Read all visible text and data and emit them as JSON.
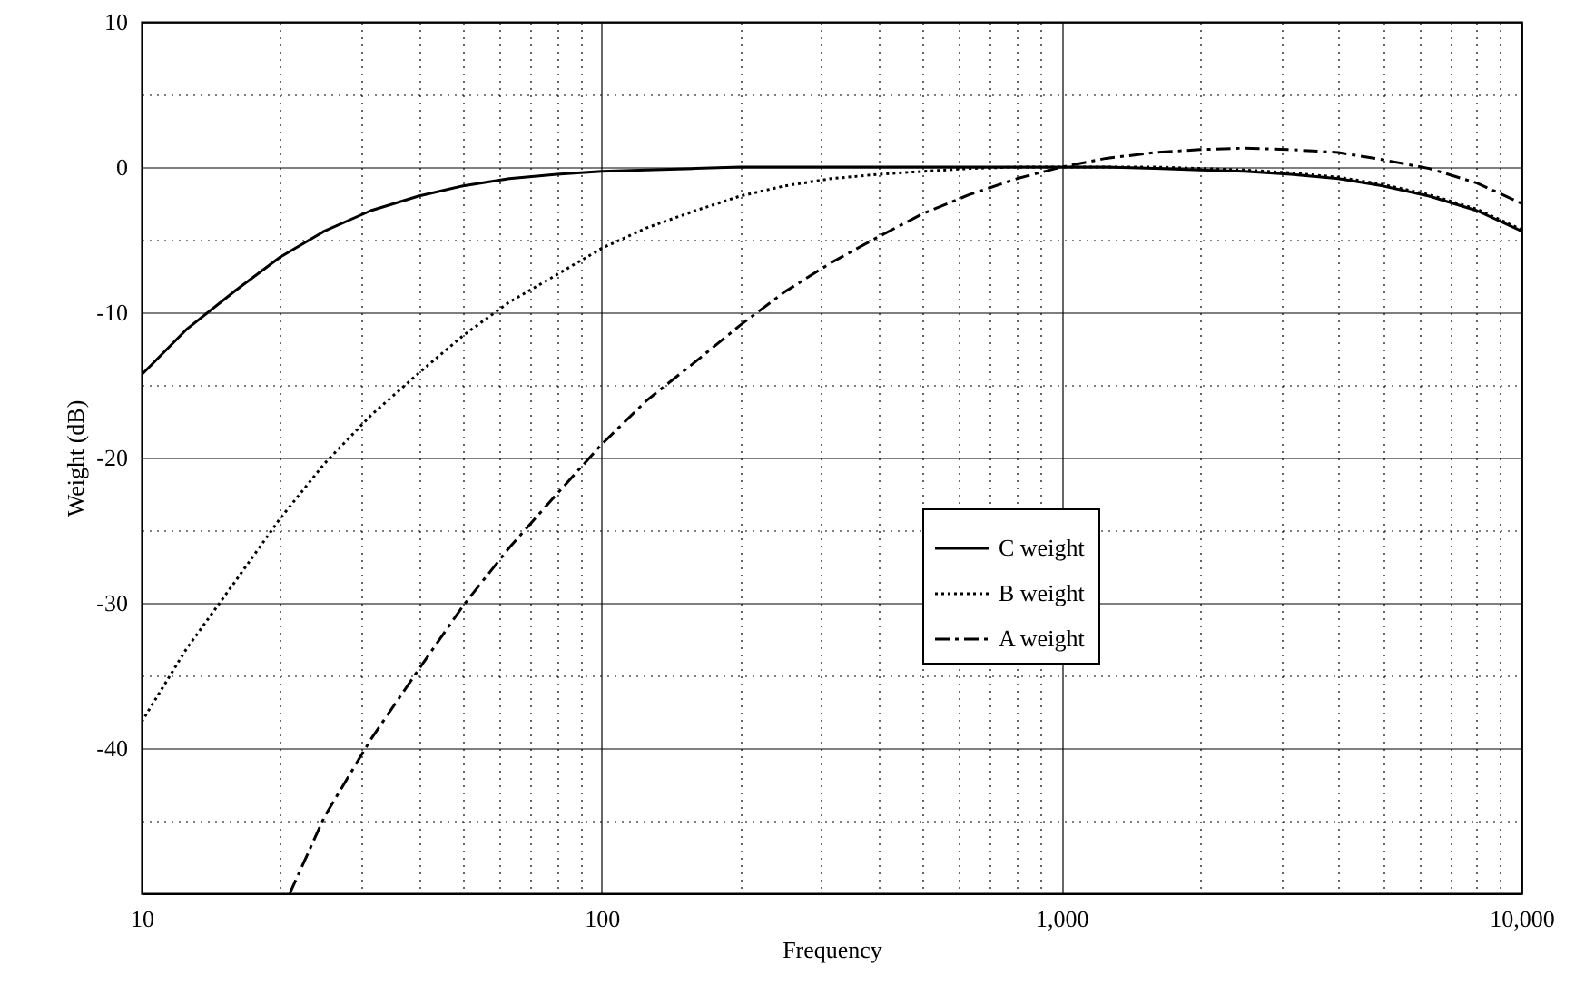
{
  "chart_data": {
    "type": "line",
    "xlabel": "Frequency",
    "ylabel": "Weight (dB)",
    "log": "x",
    "grid": true,
    "legend": "center right",
    "marker": "none",
    "xlim": [
      10,
      10000
    ],
    "ylim": [
      -50,
      10
    ],
    "xticks": [
      10,
      {
        "value": 20,
        "label": null
      },
      {
        "value": 30,
        "label": null
      },
      {
        "value": 40,
        "label": null
      },
      {
        "value": 50,
        "label": null
      },
      {
        "value": 60,
        "label": null
      },
      {
        "value": 70,
        "label": null
      },
      {
        "value": 80,
        "label": null
      },
      {
        "value": 90,
        "label": null
      },
      100,
      {
        "value": 200,
        "label": null
      },
      {
        "value": 300,
        "label": null
      },
      {
        "value": 400,
        "label": null
      },
      {
        "value": 500,
        "label": null
      },
      {
        "value": 600,
        "label": null
      },
      {
        "value": 700,
        "label": null
      },
      {
        "value": 800,
        "label": null
      },
      {
        "value": 900,
        "label": null
      },
      {
        "value": 1000,
        "label": "1,000"
      },
      {
        "value": 2000,
        "label": null
      },
      {
        "value": 3000,
        "label": null
      },
      {
        "value": 4000,
        "label": null
      },
      {
        "value": 5000,
        "label": null
      },
      {
        "value": 6000,
        "label": null
      },
      {
        "value": 7000,
        "label": null
      },
      {
        "value": 8000,
        "label": null
      },
      {
        "value": 9000,
        "label": null
      },
      {
        "value": 10000,
        "label": "10,000"
      }
    ],
    "yticks": [
      {
        "value": -45,
        "label": null
      },
      -40,
      {
        "value": -35,
        "label": null
      },
      -30,
      {
        "value": -25,
        "label": null
      },
      -20,
      {
        "value": -15,
        "label": null
      },
      -10,
      {
        "value": -5,
        "label": null
      },
      0,
      {
        "value": 5,
        "label": null
      },
      10
    ],
    "series": [
      {
        "name": "C weight",
        "color": "#000000",
        "line_style": "solid",
        "x": [
          10,
          12.5,
          16,
          20,
          25,
          31.5,
          40,
          50,
          63,
          80,
          100,
          125,
          160,
          200,
          250,
          315,
          400,
          500,
          630,
          800,
          1000,
          1250,
          1600,
          2000,
          2500,
          3150,
          4000,
          5000,
          6300,
          8000,
          10000
        ],
        "values": [
          -14.3,
          -11.2,
          -8.5,
          -6.2,
          -4.4,
          -3.0,
          -2.0,
          -1.3,
          -0.8,
          -0.5,
          -0.3,
          -0.2,
          -0.1,
          0,
          0,
          0,
          0,
          0,
          0,
          0,
          0,
          0,
          -0.1,
          -0.2,
          -0.3,
          -0.5,
          -0.8,
          -1.3,
          -2.0,
          -3.0,
          -4.4
        ]
      },
      {
        "name": "B weight",
        "color": "#000000",
        "line_style": "dotted",
        "x": [
          10,
          12.5,
          16,
          20,
          25,
          31.5,
          40,
          50,
          63,
          80,
          100,
          125,
          160,
          200,
          250,
          315,
          400,
          500,
          630,
          800,
          1000,
          1250,
          1600,
          2000,
          2500,
          3150,
          4000,
          5000,
          6300,
          8000,
          10000
        ],
        "values": [
          -38.2,
          -33.2,
          -28.5,
          -24.2,
          -20.4,
          -17.1,
          -14.2,
          -11.6,
          -9.3,
          -7.4,
          -5.6,
          -4.2,
          -3.0,
          -2.0,
          -1.3,
          -0.8,
          -0.5,
          -0.3,
          -0.1,
          0,
          0,
          0,
          0,
          -0.1,
          -0.2,
          -0.4,
          -0.7,
          -1.2,
          -1.9,
          -2.9,
          -4.3
        ]
      },
      {
        "name": "A weight",
        "color": "#000000",
        "line_style": "dashdot",
        "x": [
          21,
          25,
          31.5,
          40,
          50,
          63,
          80,
          100,
          125,
          160,
          200,
          250,
          315,
          400,
          500,
          630,
          800,
          1000,
          1250,
          1600,
          2000,
          2500,
          3150,
          4000,
          5000,
          6300,
          8000,
          10000
        ],
        "values": [
          -50,
          -44.7,
          -39.4,
          -34.6,
          -30.2,
          -26.2,
          -22.5,
          -19.1,
          -16.1,
          -13.4,
          -10.9,
          -8.6,
          -6.6,
          -4.8,
          -3.2,
          -1.9,
          -0.8,
          0,
          0.6,
          1.0,
          1.2,
          1.3,
          1.2,
          1.0,
          0.5,
          -0.1,
          -1.1,
          -2.5
        ]
      }
    ]
  }
}
